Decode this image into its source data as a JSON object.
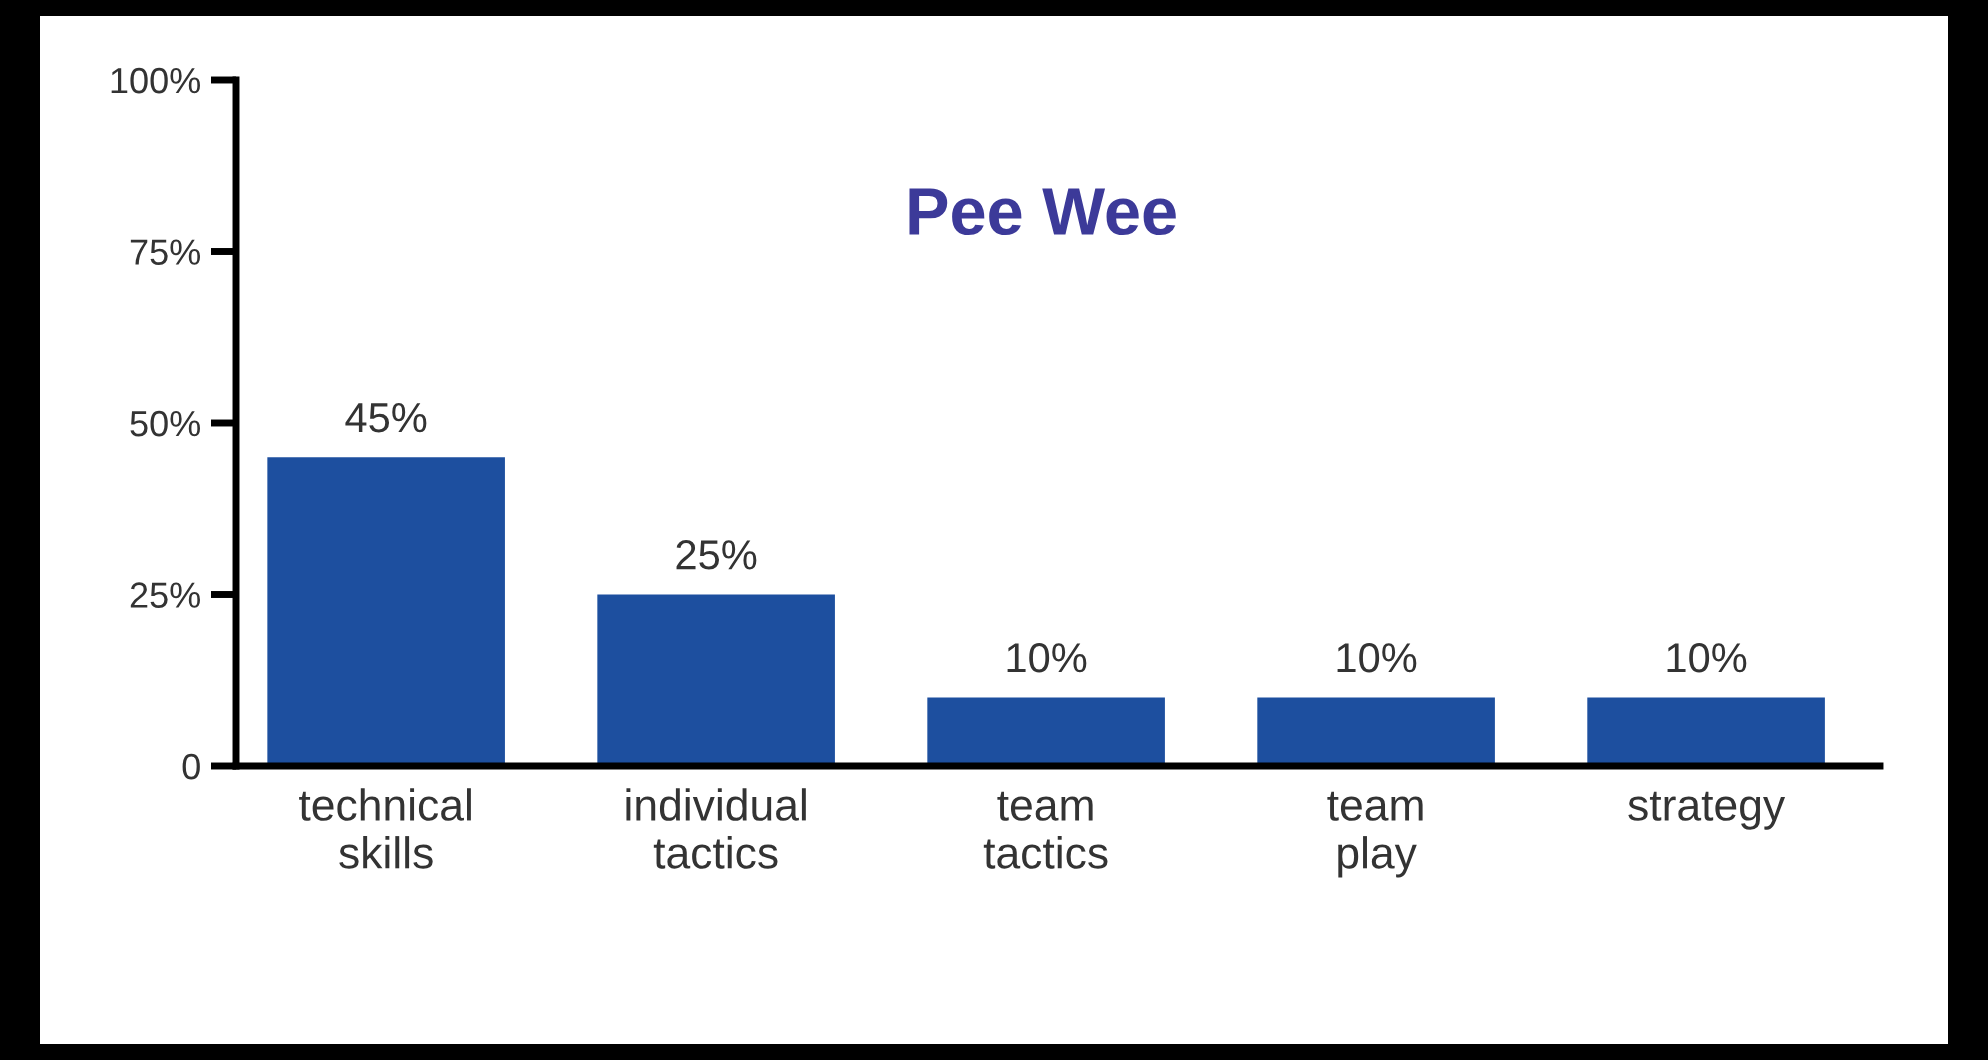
{
  "chart_data": {
    "type": "bar",
    "title": "Pee Wee",
    "categories": [
      "technical\nskills",
      "individual\ntactics",
      "team\ntactics",
      "team\nplay",
      "strategy"
    ],
    "values": [
      45,
      25,
      10,
      10,
      10
    ],
    "value_labels": [
      "45%",
      "25%",
      "10%",
      "10%",
      "10%"
    ],
    "color": "#1d4f9f",
    "ylim": [
      0,
      100
    ],
    "yticks": [
      {
        "value": 0,
        "label": "0"
      },
      {
        "value": 25,
        "label": "25%"
      },
      {
        "value": 50,
        "label": "50%"
      },
      {
        "value": 75,
        "label": "75%"
      },
      {
        "value": 100,
        "label": "100%"
      }
    ],
    "grid": false,
    "legend": false
  }
}
